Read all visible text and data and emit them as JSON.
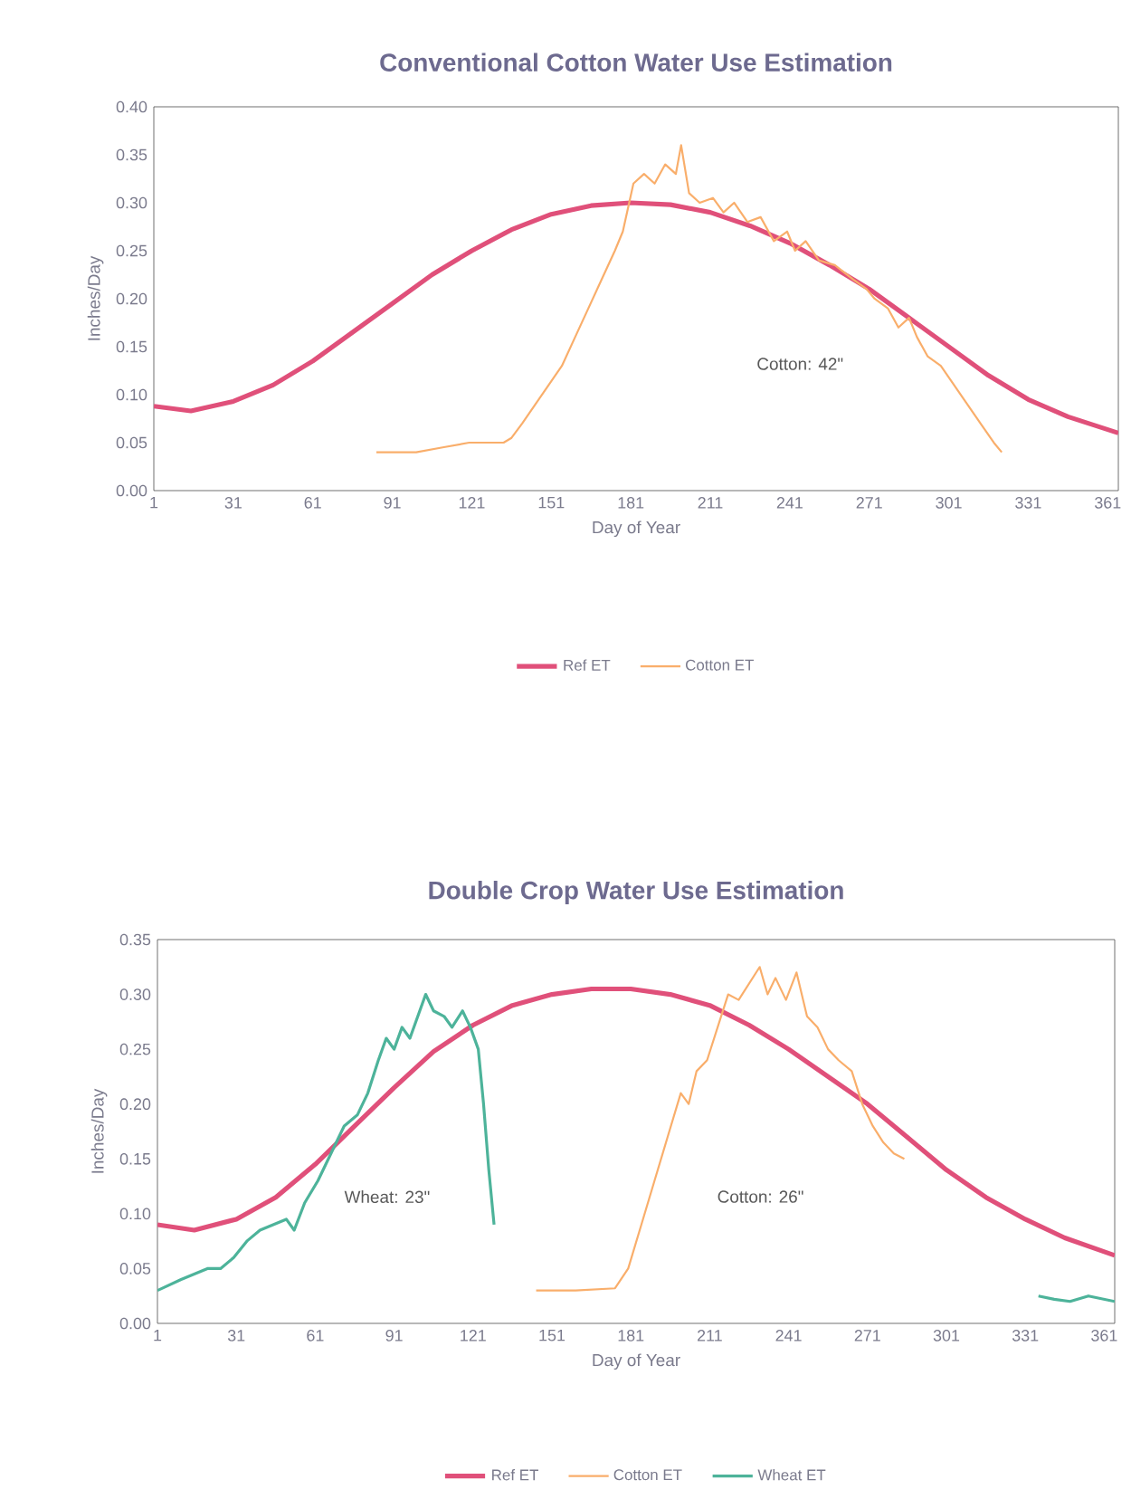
{
  "chart_data": [
    {
      "type": "line",
      "title": "Conventional Cotton Water Use Estimation",
      "xlabel": "Day of Year",
      "ylabel": "Inches/Day",
      "xlim": [
        1,
        365
      ],
      "ylim": [
        0,
        0.4
      ],
      "xticks": [
        1,
        31,
        61,
        91,
        121,
        151,
        181,
        211,
        241,
        271,
        301,
        331,
        361
      ],
      "yticks": [
        {
          "value": 0,
          "label": "0.00"
        },
        {
          "value": 0.05,
          "label": "0.05"
        },
        {
          "value": 0.1,
          "label": "0.10"
        },
        {
          "value": 0.15,
          "label": "0.15"
        },
        {
          "value": 0.2,
          "label": "0.20"
        },
        {
          "value": 0.25,
          "label": "0.25"
        },
        {
          "value": 0.3,
          "label": "0.30"
        },
        {
          "value": 0.35,
          "label": "0.35"
        },
        {
          "value": 0.4,
          "label": "0.40"
        }
      ],
      "grid": false,
      "legend": "bottom",
      "marker": "none",
      "line_style": "solid",
      "annotations": [
        "Cotton: 42\""
      ],
      "series": [
        {
          "name": "Ref ET",
          "color": "#e0507a",
          "x": [
            1,
            15,
            31,
            46,
            61,
            76,
            91,
            106,
            121,
            136,
            151,
            166,
            181,
            196,
            211,
            226,
            241,
            256,
            271,
            286,
            301,
            316,
            331,
            346,
            365
          ],
          "values": [
            0.088,
            0.083,
            0.093,
            0.11,
            0.135,
            0.165,
            0.195,
            0.225,
            0.25,
            0.272,
            0.288,
            0.297,
            0.3,
            0.298,
            0.29,
            0.276,
            0.258,
            0.235,
            0.21,
            0.18,
            0.15,
            0.12,
            0.095,
            0.077,
            0.06
          ]
        },
        {
          "name": "Cotton ET",
          "color": "#f9ae6b",
          "x": [
            85,
            100,
            110,
            120,
            133,
            136,
            140,
            145,
            150,
            155,
            160,
            165,
            170,
            175,
            178,
            182,
            186,
            190,
            194,
            198,
            200,
            203,
            207,
            212,
            216,
            220,
            225,
            230,
            235,
            240,
            243,
            247,
            252,
            258,
            265,
            270,
            273,
            278,
            282,
            286,
            289,
            293,
            298,
            303,
            308,
            313,
            318,
            321
          ],
          "values": [
            0.04,
            0.04,
            0.045,
            0.05,
            0.05,
            0.055,
            0.07,
            0.09,
            0.11,
            0.13,
            0.16,
            0.19,
            0.22,
            0.25,
            0.27,
            0.32,
            0.33,
            0.32,
            0.34,
            0.33,
            0.36,
            0.31,
            0.3,
            0.305,
            0.29,
            0.3,
            0.28,
            0.285,
            0.26,
            0.27,
            0.25,
            0.26,
            0.24,
            0.235,
            0.22,
            0.21,
            0.2,
            0.19,
            0.17,
            0.18,
            0.16,
            0.14,
            0.13,
            0.11,
            0.09,
            0.07,
            0.05,
            0.04
          ]
        }
      ]
    },
    {
      "type": "line",
      "title": "Double Crop Water Use Estimation",
      "xlabel": "Day of Year",
      "ylabel": "Inches/Day",
      "xlim": [
        1,
        365
      ],
      "ylim": [
        0,
        0.35
      ],
      "xticks": [
        1,
        31,
        61,
        91,
        121,
        151,
        181,
        211,
        241,
        271,
        301,
        331,
        361
      ],
      "yticks": [
        {
          "value": 0,
          "label": "0.00"
        },
        {
          "value": 0.05,
          "label": "0.05"
        },
        {
          "value": 0.1,
          "label": "0.10"
        },
        {
          "value": 0.15,
          "label": "0.15"
        },
        {
          "value": 0.2,
          "label": "0.20"
        },
        {
          "value": 0.25,
          "label": "0.25"
        },
        {
          "value": 0.3,
          "label": "0.30"
        },
        {
          "value": 0.35,
          "label": "0.35"
        }
      ],
      "grid": false,
      "legend": "bottom",
      "marker": "none",
      "line_style": "solid",
      "annotations": [
        "Wheat: 23\"",
        "Cotton: 26\""
      ],
      "series": [
        {
          "name": "Ref ET",
          "color": "#e0507a",
          "x": [
            1,
            15,
            31,
            46,
            61,
            76,
            91,
            106,
            121,
            136,
            151,
            166,
            181,
            196,
            211,
            226,
            241,
            256,
            271,
            286,
            301,
            316,
            331,
            346,
            365
          ],
          "values": [
            0.09,
            0.085,
            0.095,
            0.115,
            0.145,
            0.18,
            0.215,
            0.248,
            0.272,
            0.29,
            0.3,
            0.305,
            0.305,
            0.3,
            0.29,
            0.272,
            0.25,
            0.225,
            0.2,
            0.17,
            0.14,
            0.115,
            0.095,
            0.078,
            0.062
          ]
        },
        {
          "name": "Cotton ET",
          "color": "#f9ae6b",
          "x": [
            145,
            160,
            175,
            180,
            185,
            190,
            195,
            200,
            203,
            206,
            210,
            214,
            218,
            222,
            226,
            230,
            233,
            236,
            240,
            244,
            248,
            252,
            256,
            260,
            265,
            269,
            273,
            277,
            281,
            285
          ],
          "values": [
            0.03,
            0.03,
            0.032,
            0.05,
            0.09,
            0.13,
            0.17,
            0.21,
            0.2,
            0.23,
            0.24,
            0.27,
            0.3,
            0.295,
            0.31,
            0.325,
            0.3,
            0.315,
            0.295,
            0.32,
            0.28,
            0.27,
            0.25,
            0.24,
            0.23,
            0.2,
            0.18,
            0.165,
            0.155,
            0.15
          ]
        },
        {
          "name": "Wheat ET",
          "color": "#4db39a",
          "x": [
            1,
            10,
            20,
            25,
            30,
            35,
            40,
            45,
            50,
            53,
            57,
            62,
            67,
            72,
            77,
            81,
            85,
            88,
            91,
            94,
            97,
            100,
            103,
            106,
            110,
            113,
            117,
            120,
            123,
            125,
            127,
            129,
            230,
            336,
            342,
            348,
            355,
            361,
            365
          ],
          "values": [
            0.03,
            0.04,
            0.05,
            0.05,
            0.06,
            0.075,
            0.085,
            0.09,
            0.095,
            0.085,
            0.11,
            0.13,
            0.155,
            0.18,
            0.19,
            0.21,
            0.24,
            0.26,
            0.25,
            0.27,
            0.26,
            0.28,
            0.3,
            0.285,
            0.28,
            0.27,
            0.285,
            0.27,
            0.25,
            0.2,
            0.14,
            0.09,
            null,
            0.025,
            0.022,
            0.02,
            0.025,
            0.022,
            0.02
          ]
        }
      ]
    }
  ]
}
